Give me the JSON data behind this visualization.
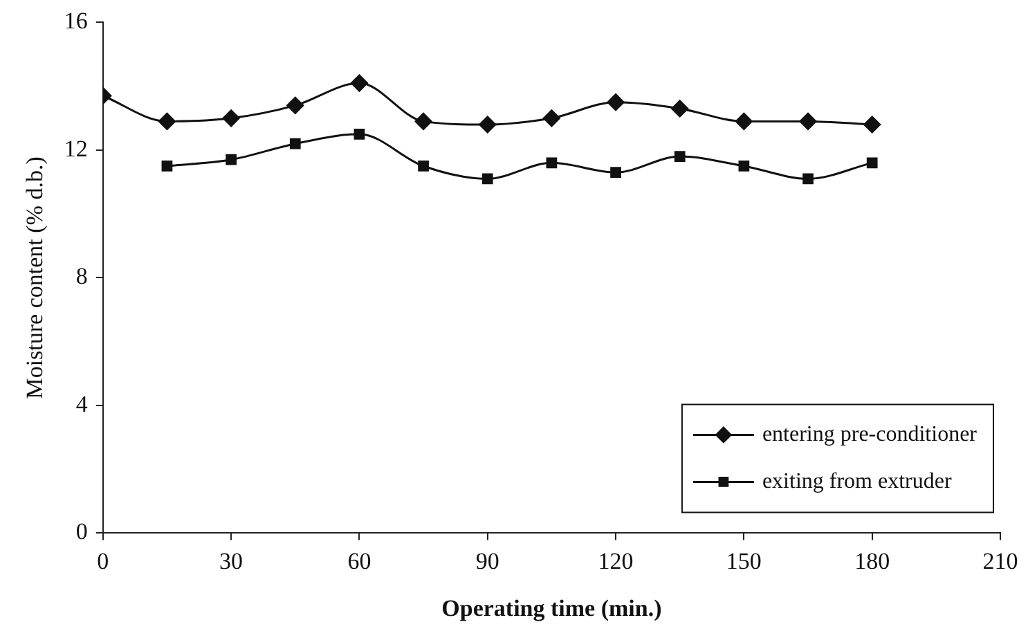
{
  "chart_data": {
    "type": "line",
    "xlabel": "Operating time (min.)",
    "ylabel": "Moisture content (% d.b.)",
    "xlim": [
      0,
      210
    ],
    "xticks": [
      0,
      30,
      60,
      90,
      120,
      150,
      180,
      210
    ],
    "ylim": [
      0,
      16
    ],
    "yticks": [
      0,
      4,
      8,
      12,
      16
    ],
    "grid": false,
    "legend": "bottom right",
    "line_style": "solid",
    "series": [
      {
        "name": "entering pre-conditioner",
        "color": "#111111",
        "marker": "diamond",
        "x": [
          0,
          15,
          30,
          45,
          60,
          75,
          90,
          105,
          120,
          135,
          150,
          165,
          180
        ],
        "values": [
          13.7,
          12.9,
          13.0,
          13.4,
          14.1,
          12.9,
          12.8,
          13.0,
          13.5,
          13.3,
          12.9,
          12.9,
          12.8
        ]
      },
      {
        "name": "exiting from extruder",
        "color": "#111111",
        "marker": "square",
        "x": [
          15,
          30,
          45,
          60,
          75,
          90,
          105,
          120,
          135,
          150,
          165,
          180
        ],
        "values": [
          11.5,
          11.7,
          12.2,
          12.5,
          11.5,
          11.1,
          11.6,
          11.3,
          11.8,
          11.5,
          11.1,
          11.6
        ]
      }
    ]
  }
}
